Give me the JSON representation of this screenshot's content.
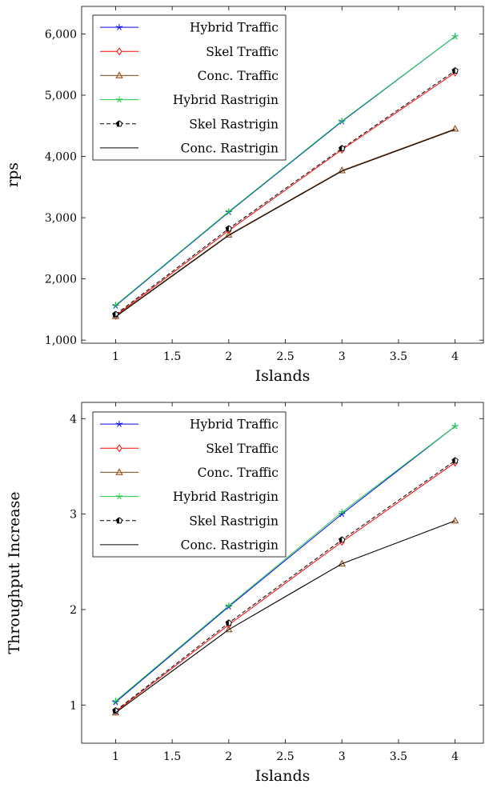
{
  "chart_data": [
    {
      "type": "line",
      "title": "",
      "xlabel": "Islands",
      "ylabel": "rps",
      "xlim": [
        0.7,
        4.25
      ],
      "ylim": [
        950,
        6450
      ],
      "x_ticks": [
        1,
        1.5,
        2,
        2.5,
        3,
        3.5,
        4
      ],
      "x_tick_labels": [
        "1",
        "1.5",
        "2",
        "2.5",
        "3",
        "3.5",
        "4"
      ],
      "y_ticks": [
        1000,
        2000,
        3000,
        4000,
        5000,
        6000
      ],
      "y_tick_labels": [
        "1,000",
        "2,000",
        "3,000",
        "4,000",
        "5,000",
        "6,000"
      ],
      "grid": false,
      "legend_position": "top-left",
      "x": [
        1,
        2,
        3,
        4
      ],
      "series": [
        {
          "name": "Hybrid Traffic",
          "values": [
            1560,
            3090,
            4570,
            5960
          ],
          "color": "#0000ff",
          "marker": "star",
          "dash": "solid"
        },
        {
          "name": "Skel Traffic",
          "values": [
            1400,
            2790,
            4110,
            5370
          ],
          "color": "#ff0000",
          "marker": "diamond",
          "dash": "solid"
        },
        {
          "name": "Conc. Traffic",
          "values": [
            1390,
            2720,
            3770,
            4450
          ],
          "color": "#8b4513",
          "marker": "triangle",
          "dash": "solid"
        },
        {
          "name": "Hybrid Rastrigin",
          "values": [
            1570,
            3100,
            4580,
            5960
          ],
          "color": "#22cc44",
          "marker": "star",
          "dash": "solid"
        },
        {
          "name": "Skel Rastrigin",
          "values": [
            1420,
            2820,
            4130,
            5400
          ],
          "color": "#000000",
          "marker": "pentagon-half",
          "dash": "dashed"
        },
        {
          "name": "Conc. Rastrigin",
          "values": [
            1380,
            2710,
            3760,
            4440
          ],
          "color": "#000000",
          "marker": "none",
          "dash": "solid"
        }
      ]
    },
    {
      "type": "line",
      "title": "",
      "xlabel": "Islands",
      "ylabel": "Throughput Increase",
      "xlim": [
        0.7,
        4.25
      ],
      "ylim": [
        0.6,
        4.17
      ],
      "x_ticks": [
        1,
        1.5,
        2,
        2.5,
        3,
        3.5,
        4
      ],
      "x_tick_labels": [
        "1",
        "1.5",
        "2",
        "2.5",
        "3",
        "3.5",
        "4"
      ],
      "y_ticks": [
        1,
        2,
        3,
        4
      ],
      "y_tick_labels": [
        "1",
        "2",
        "3",
        "4"
      ],
      "grid": false,
      "legend_position": "top-left",
      "x": [
        1,
        2,
        3,
        4
      ],
      "series": [
        {
          "name": "Hybrid Traffic",
          "values": [
            1.03,
            2.03,
            3.0,
            3.92
          ],
          "color": "#0000ff",
          "marker": "star",
          "dash": "solid"
        },
        {
          "name": "Skel Traffic",
          "values": [
            0.93,
            1.84,
            2.71,
            3.54
          ],
          "color": "#ff0000",
          "marker": "diamond",
          "dash": "solid"
        },
        {
          "name": "Conc. Traffic",
          "values": [
            0.92,
            1.79,
            2.48,
            2.93
          ],
          "color": "#8b4513",
          "marker": "triangle",
          "dash": "solid"
        },
        {
          "name": "Hybrid Rastrigin",
          "values": [
            1.04,
            2.04,
            3.02,
            3.92
          ],
          "color": "#22cc44",
          "marker": "star",
          "dash": "solid"
        },
        {
          "name": "Skel Rastrigin",
          "values": [
            0.94,
            1.86,
            2.73,
            3.56
          ],
          "color": "#000000",
          "marker": "pentagon-half",
          "dash": "dashed"
        },
        {
          "name": "Conc. Rastrigin",
          "values": [
            0.92,
            1.79,
            2.48,
            2.93
          ],
          "color": "#000000",
          "marker": "none",
          "dash": "solid"
        }
      ]
    }
  ]
}
